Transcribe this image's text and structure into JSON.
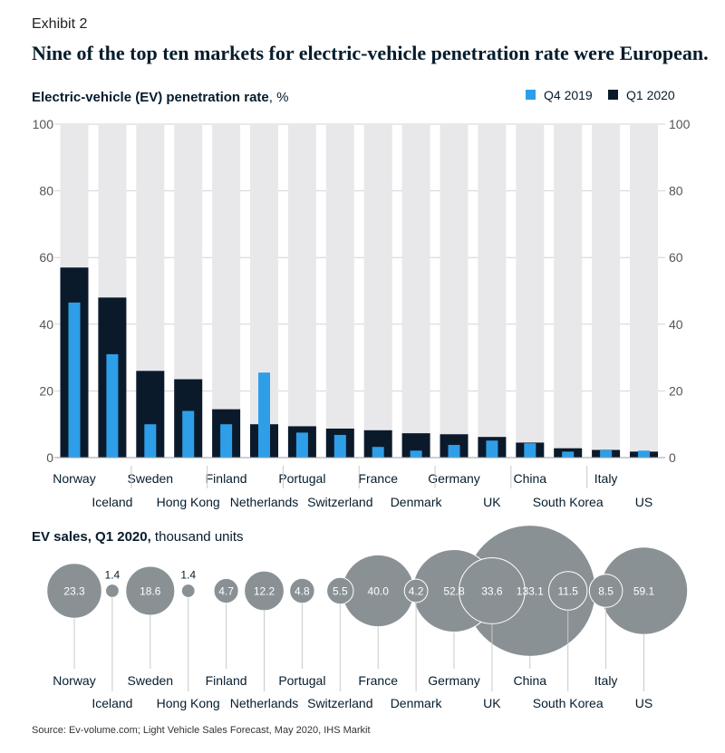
{
  "exhibit_label": "Exhibit 2",
  "headline": "Nine of the top ten markets for electric-vehicle penetration rate were European.",
  "source": "Source: Ev-volume.com; Light Vehicle Sales Forecast, May 2020, IHS Markit",
  "colors": {
    "q1_2020": "#0b1a2b",
    "q4_2019": "#2f9ee8",
    "track": "#e8e8ea",
    "bubble": "#8a9195"
  },
  "chart_data": [
    {
      "type": "bar",
      "title": "Electric-vehicle (EV) penetration rate",
      "title_unit": ", %",
      "ylim": [
        0,
        100
      ],
      "yticks": [
        "0",
        "20",
        "40",
        "60",
        "80",
        "100"
      ],
      "legend_position": "top-right",
      "categories": [
        "Norway",
        "Iceland",
        "Sweden",
        "Hong Kong",
        "Finland",
        "Netherlands",
        "Portugal",
        "Switzerland",
        "France",
        "Denmark",
        "Germany",
        "UK",
        "China",
        "South Korea",
        "Italy",
        "US"
      ],
      "series": [
        {
          "name": "Q4 2019",
          "values": [
            46.5,
            31,
            10,
            14,
            10,
            25.5,
            7.5,
            6.8,
            3.2,
            2.1,
            3.8,
            5.1,
            4.3,
            1.8,
            2.2,
            2.1
          ]
        },
        {
          "name": "Q1 2020",
          "values": [
            57,
            48,
            26,
            23.5,
            14.5,
            10,
            9.4,
            8.7,
            8.2,
            7.3,
            7.0,
            6.2,
            4.5,
            2.8,
            2.3,
            1.8
          ]
        }
      ]
    },
    {
      "type": "bubble",
      "title": "EV sales, Q1 2020,",
      "title_unit": " thousand units",
      "categories": [
        "Norway",
        "Iceland",
        "Sweden",
        "Hong Kong",
        "Finland",
        "Netherlands",
        "Portugal",
        "Switzerland",
        "France",
        "Denmark",
        "Germany",
        "UK",
        "China",
        "South Korea",
        "Italy",
        "US"
      ],
      "values": [
        23.3,
        1.4,
        18.6,
        1.4,
        4.7,
        12.2,
        4.8,
        5.5,
        40.0,
        4.2,
        52.8,
        33.6,
        133.1,
        11.5,
        8.5,
        59.1
      ],
      "labels": [
        "23.3",
        "1.4",
        "18.6",
        "1.4",
        "4.7",
        "12.2",
        "4.8",
        "5.5",
        "40.0",
        "4.2",
        "52.8",
        "33.6",
        "133.1",
        "11.5",
        "8.5",
        "59.1"
      ]
    }
  ]
}
